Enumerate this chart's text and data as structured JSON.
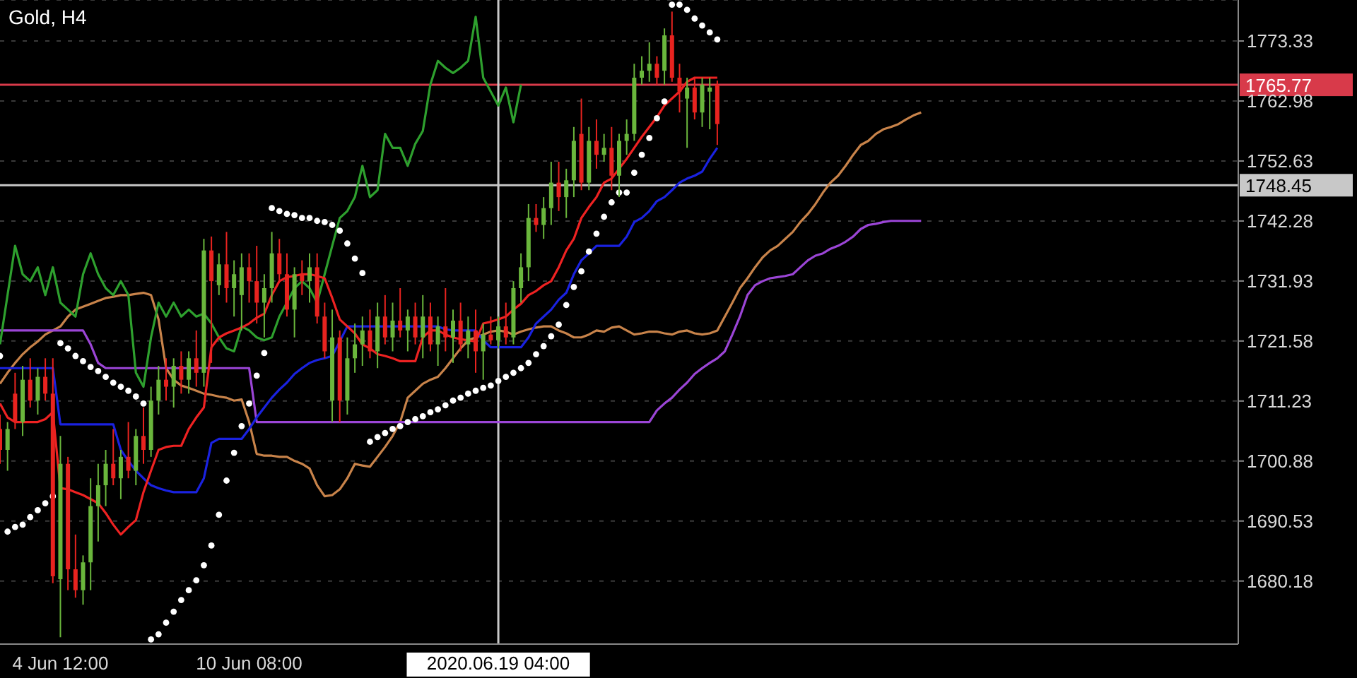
{
  "chart_data": {
    "type": "candlestick",
    "title": "Gold, H4",
    "categories": [
      null,
      null,
      null,
      null,
      null,
      null,
      null,
      null,
      "4 Jun 12:00",
      null,
      null,
      null,
      null,
      null,
      null,
      null,
      null,
      null,
      null,
      null,
      null,
      null,
      null,
      null,
      null,
      null,
      null,
      null,
      null,
      null,
      null,
      null,
      null,
      "10 Jun 08:00",
      null,
      null,
      null,
      null,
      null,
      null,
      null,
      null,
      null,
      null,
      null,
      null,
      null,
      null,
      null,
      null,
      null,
      null,
      null,
      null,
      null,
      null,
      null,
      null,
      null,
      null,
      null,
      null,
      null,
      null,
      null,
      null,
      "2020.06.19 04:00",
      null,
      null,
      null,
      null,
      null,
      null,
      null,
      null,
      null,
      null,
      null,
      null,
      null,
      null,
      null,
      null,
      null,
      null,
      null,
      null,
      null,
      null,
      null,
      null,
      null,
      null,
      null,
      null,
      null,
      null,
      null,
      null,
      null,
      null,
      null,
      null,
      null,
      null,
      null,
      null,
      null,
      null,
      null,
      null,
      null,
      null,
      null,
      null,
      null,
      null,
      null,
      null,
      null,
      null,
      null,
      null,
      null,
      null,
      null,
      null,
      null,
      null,
      null,
      null,
      null,
      null,
      null,
      null,
      null,
      null,
      null,
      null,
      null,
      null,
      null,
      null,
      null,
      null,
      null,
      null,
      null,
      null,
      null,
      null,
      null,
      null,
      null,
      null,
      null,
      null,
      null,
      null,
      null,
      null,
      null,
      null,
      null,
      null
    ],
    "ohlc": [
      [
        1706.4,
        1708.9,
        1700.4,
        1702.8
      ],
      [
        1702.8,
        1707.6,
        1699.2,
        1706.4
      ],
      [
        1712.5,
        1716.1,
        1706.4,
        1707.6
      ],
      [
        1707.6,
        1717.3,
        1705.2,
        1714.9
      ],
      [
        1714.9,
        1718.6,
        1710.1,
        1711.3
      ],
      [
        1711.3,
        1716.9,
        1708.9,
        1715.4
      ],
      [
        1715.4,
        1718.6,
        1711.3,
        1712.5
      ],
      [
        1712.5,
        1718.6,
        1679.8,
        1681.0
      ],
      [
        1680.5,
        1705.2,
        1670.5,
        1700.4
      ],
      [
        1700.4,
        1701.6,
        1678.6,
        1682.2
      ],
      [
        1682.2,
        1688.2,
        1677.3,
        1678.6
      ],
      [
        1678.6,
        1684.6,
        1676.1,
        1683.4
      ],
      [
        1683.4,
        1697.9,
        1678.6,
        1693.1
      ],
      [
        1693.1,
        1700.4,
        1687.0,
        1696.7
      ],
      [
        1696.7,
        1702.8,
        1693.1,
        1700.4
      ],
      [
        1700.4,
        1706.4,
        1696.7,
        1697.9
      ],
      [
        1697.9,
        1702.8,
        1694.3,
        1701.6
      ],
      [
        1701.6,
        1707.6,
        1697.9,
        1699.2
      ],
      [
        1699.2,
        1706.4,
        1696.7,
        1705.2
      ],
      [
        1705.2,
        1710.1,
        1700.4,
        1702.8
      ],
      [
        1702.8,
        1713.7,
        1701.6,
        1711.3
      ],
      [
        1711.3,
        1717.3,
        1708.9,
        1714.9
      ],
      [
        1714.9,
        1718.6,
        1711.3,
        1713.7
      ],
      [
        1713.7,
        1718.6,
        1710.1,
        1717.3
      ],
      [
        1717.3,
        1719.8,
        1712.5,
        1714.9
      ],
      [
        1714.9,
        1719.8,
        1712.5,
        1718.6
      ],
      [
        1718.6,
        1723.4,
        1713.7,
        1716.1
      ],
      [
        1716.1,
        1739.2,
        1713.7,
        1737.2
      ],
      [
        1737.2,
        1739.6,
        1717.8,
        1731.9
      ],
      [
        1731.2,
        1736.7,
        1729.5,
        1734.8
      ],
      [
        1734.8,
        1740.4,
        1728.2,
        1730.7
      ],
      [
        1730.7,
        1735.5,
        1725.8,
        1733.1
      ],
      [
        1729.5,
        1736.7,
        1723.4,
        1734.3
      ],
      [
        1734.3,
        1736.7,
        1728.2,
        1731.9
      ],
      [
        1731.9,
        1738.0,
        1724.6,
        1728.2
      ],
      [
        1728.2,
        1733.1,
        1722.2,
        1730.7
      ],
      [
        1730.7,
        1740.4,
        1728.2,
        1736.7
      ],
      [
        1736.7,
        1739.2,
        1731.9,
        1733.1
      ],
      [
        1733.1,
        1736.7,
        1725.8,
        1727.0
      ],
      [
        1727.0,
        1734.3,
        1722.2,
        1733.1
      ],
      [
        1733.1,
        1735.5,
        1729.5,
        1731.9
      ],
      [
        1731.9,
        1736.7,
        1728.2,
        1734.3
      ],
      [
        1734.3,
        1736.7,
        1724.6,
        1725.8
      ],
      [
        1725.8,
        1728.2,
        1718.6,
        1719.8
      ],
      [
        1711.3,
        1727.0,
        1707.6,
        1722.2
      ],
      [
        1722.2,
        1723.4,
        1707.6,
        1711.3
      ],
      [
        1711.3,
        1722.2,
        1708.9,
        1718.6
      ],
      [
        1718.6,
        1724.6,
        1716.1,
        1721.0
      ],
      [
        1721.0,
        1725.8,
        1717.3,
        1723.4
      ],
      [
        1723.4,
        1727.0,
        1718.6,
        1719.8
      ],
      [
        1719.8,
        1728.2,
        1716.9,
        1725.8
      ],
      [
        1725.8,
        1729.5,
        1721.0,
        1722.2
      ],
      [
        1722.2,
        1728.2,
        1719.8,
        1725.1
      ],
      [
        1725.1,
        1730.7,
        1722.2,
        1723.4
      ],
      [
        1723.4,
        1727.0,
        1719.8,
        1725.8
      ],
      [
        1725.8,
        1728.2,
        1721.0,
        1722.2
      ],
      [
        1722.2,
        1729.5,
        1718.6,
        1725.8
      ],
      [
        1725.8,
        1728.2,
        1719.8,
        1721.0
      ],
      [
        1721.0,
        1725.8,
        1717.3,
        1724.1
      ],
      [
        1724.1,
        1730.7,
        1719.8,
        1722.2
      ],
      [
        1722.2,
        1727.0,
        1717.8,
        1725.1
      ],
      [
        1725.1,
        1728.2,
        1719.8,
        1721.0
      ],
      [
        1721.0,
        1725.8,
        1718.6,
        1723.4
      ],
      [
        1723.4,
        1727.0,
        1716.1,
        1719.8
      ],
      [
        1719.8,
        1724.6,
        1714.9,
        1722.7
      ],
      [
        1722.7,
        1725.8,
        1721.0,
        1721.7
      ],
      [
        1721.7,
        1725.8,
        1720.3,
        1724.1
      ],
      [
        1724.1,
        1728.2,
        1721.0,
        1722.2
      ],
      [
        1722.2,
        1731.9,
        1721.0,
        1730.7
      ],
      [
        1730.7,
        1736.7,
        1728.2,
        1734.3
      ],
      [
        1734.3,
        1745.2,
        1731.9,
        1742.8
      ],
      [
        1742.8,
        1745.2,
        1740.4,
        1741.6
      ],
      [
        1741.6,
        1746.4,
        1739.2,
        1744.5
      ],
      [
        1744.5,
        1752.5,
        1741.6,
        1748.9
      ],
      [
        1748.9,
        1752.5,
        1744.0,
        1746.4
      ],
      [
        1746.4,
        1751.3,
        1742.8,
        1749.3
      ],
      [
        1749.3,
        1758.5,
        1746.4,
        1756.1
      ],
      [
        1757.3,
        1763.4,
        1747.6,
        1748.9
      ],
      [
        1748.9,
        1758.5,
        1747.6,
        1756.1
      ],
      [
        1756.1,
        1759.8,
        1751.3,
        1753.7
      ],
      [
        1753.7,
        1757.3,
        1752.5,
        1754.9
      ],
      [
        1754.9,
        1758.5,
        1747.6,
        1750.1
      ],
      [
        1750.1,
        1757.3,
        1746.4,
        1756.1
      ],
      [
        1756.1,
        1759.8,
        1753.7,
        1757.3
      ],
      [
        1757.3,
        1769.4,
        1756.1,
        1767.0
      ],
      [
        1767.0,
        1770.7,
        1765.8,
        1768.2
      ],
      [
        1768.2,
        1773.1,
        1766.3,
        1769.4
      ],
      [
        1769.4,
        1770.7,
        1765.8,
        1767.0
      ],
      [
        1768.2,
        1775.5,
        1765.8,
        1774.3
      ],
      [
        1774.3,
        1778.4,
        1766.3,
        1767.0
      ],
      [
        1767.0,
        1769.4,
        1761.0,
        1764.6
      ],
      [
        1763.4,
        1767.0,
        1754.9,
        1765.3
      ],
      [
        1765.3,
        1767.0,
        1759.8,
        1761.0
      ],
      [
        1761.0,
        1767.0,
        1758.5,
        1765.8
      ],
      [
        1764.6,
        1767.0,
        1758.1,
        1765.3
      ],
      [
        1765.8,
        1766.5,
        1755.4,
        1759.0
      ],
      null,
      null,
      null,
      null,
      null,
      null,
      null,
      null,
      null,
      null,
      null,
      null,
      null,
      null,
      null,
      null,
      null,
      null,
      null,
      null,
      null,
      null,
      null,
      null,
      null,
      null,
      null,
      null,
      null,
      null,
      null,
      null,
      null,
      null,
      null,
      null,
      null,
      null,
      null,
      null,
      null,
      null,
      null,
      null,
      null,
      null,
      null,
      null,
      null,
      null,
      null,
      null,
      null,
      null,
      null,
      null,
      null,
      null,
      null,
      null,
      null,
      null,
      null,
      null,
      null,
      null,
      null,
      null,
      null
    ],
    "colors": [
      "#e8231f",
      "#6ab63c",
      "#e8231f",
      "#6ab63c",
      "#e8231f",
      "#6ab63c",
      "#e8231f",
      "#e8231f",
      "#6ab63c",
      "#e8231f",
      "#e8231f",
      "#6ab63c",
      "#6ab63c",
      "#6ab63c",
      "#6ab63c",
      "#e8231f",
      "#6ab63c",
      "#e8231f",
      "#6ab63c",
      "#e8231f",
      "#6ab63c",
      "#6ab63c",
      "#e8231f",
      "#6ab63c",
      "#e8231f",
      "#6ab63c",
      "#e8231f",
      "#6ab63c",
      "#e8231f",
      "#6ab63c",
      "#e8231f",
      "#6ab63c",
      "#6ab63c",
      "#e8231f",
      "#e8231f",
      "#6ab63c",
      "#6ab63c",
      "#e8231f",
      "#e8231f",
      "#6ab63c",
      "#e8231f",
      "#6ab63c",
      "#e8231f",
      "#e8231f",
      "#6ab63c",
      "#e8231f",
      "#6ab63c",
      "#6ab63c",
      "#6ab63c",
      "#e8231f",
      "#6ab63c",
      "#e8231f",
      "#6ab63c",
      "#e8231f",
      "#6ab63c",
      "#e8231f",
      "#6ab63c",
      "#e8231f",
      "#6ab63c",
      "#e8231f",
      "#6ab63c",
      "#e8231f",
      "#6ab63c",
      "#e8231f",
      "#6ab63c",
      "#e8231f",
      "#6ab63c",
      "#e8231f",
      "#6ab63c",
      "#6ab63c",
      "#6ab63c",
      "#e8231f",
      "#6ab63c",
      "#6ab63c",
      "#e8231f",
      "#6ab63c",
      "#6ab63c",
      "#e8231f",
      "#6ab63c",
      "#e8231f",
      "#6ab63c",
      "#e8231f",
      "#6ab63c",
      "#6ab63c",
      "#6ab63c",
      "#6ab63c",
      "#6ab63c",
      "#e8231f",
      "#6ab63c",
      "#e8231f",
      "#e8231f",
      "#6ab63c",
      "#e8231f",
      "#6ab63c",
      "#6ab63c",
      "#e8231f",
      null,
      null,
      null,
      null,
      null,
      null,
      null,
      null,
      null,
      null,
      null,
      null,
      null,
      null,
      null,
      null,
      null,
      null,
      null,
      null,
      null,
      null,
      null,
      null,
      null,
      null,
      null,
      null,
      null,
      null,
      null,
      null,
      null,
      null,
      null,
      null,
      null,
      null,
      null,
      null,
      null,
      null,
      null,
      null,
      null,
      null,
      null,
      null,
      null,
      null,
      null,
      null,
      null,
      null,
      null,
      null,
      null,
      null,
      null,
      null,
      null,
      null,
      null,
      null,
      null,
      null,
      null,
      null,
      null
    ],
    "series": [
      {
        "type": "line",
        "color": "#c8834a",
        "values": [
          1714.2,
          1716.1,
          1717.8,
          1719.3,
          1720.5,
          1721.5,
          1722.7,
          1723.4,
          1724.1,
          1725.8,
          1727.0,
          1727.5,
          1728.0,
          1728.5,
          1729.0,
          1729.2,
          1729.5,
          1729.5,
          1729.7,
          1729.9,
          1729.5,
          1725.3,
          1716.9,
          1714.9,
          1713.9,
          1713.5,
          1713.0,
          1712.5,
          1712.3,
          1712.0,
          1711.8,
          1711.3,
          1711.5,
          1707.6,
          1702.1,
          1701.8,
          1701.8,
          1701.6,
          1701.6,
          1700.9,
          1700.4,
          1699.6,
          1696.7,
          1694.8,
          1695.0,
          1696.0,
          1697.9,
          1700.4,
          1700.1,
          1699.9,
          1701.6,
          1703.3,
          1705.2,
          1707.6,
          1711.8,
          1713.0,
          1714.2,
          1714.9,
          1715.4,
          1716.9,
          1718.6,
          1720.3,
          1721.7,
          1722.2,
          1722.7,
          1723.2,
          1723.4,
          1723.2,
          1722.7,
          1723.2,
          1723.6,
          1723.9,
          1724.1,
          1724.1,
          1723.4,
          1722.9,
          1722.2,
          1722.2,
          1722.7,
          1723.4,
          1723.2,
          1723.9,
          1724.1,
          1723.4,
          1722.7,
          1722.9,
          1723.2,
          1723.2,
          1722.9,
          1722.7,
          1723.2,
          1723.4,
          1722.9,
          1722.7,
          1722.9,
          1723.4,
          1725.8,
          1728.2,
          1730.7,
          1732.4,
          1734.3,
          1736.0,
          1737.2,
          1738.0,
          1739.2,
          1740.4,
          1742.1,
          1743.5,
          1745.2,
          1747.2,
          1748.9,
          1750.1,
          1751.8,
          1753.7,
          1755.4,
          1756.1,
          1757.3,
          1758.1,
          1758.5,
          1759.0,
          1759.8,
          1760.5,
          1761.0,
          null,
          null,
          null,
          null,
          null,
          null,
          null,
          null,
          null,
          null,
          null,
          null,
          null,
          null,
          null,
          null,
          null,
          null,
          null,
          null,
          null,
          null,
          null,
          null,
          null,
          null,
          null,
          null,
          null,
          null,
          null,
          null,
          null,
          null,
          null,
          null,
          null,
          null,
          null,
          null,
          null,
          null
        ]
      },
      {
        "type": "line",
        "color": "#9b45d6",
        "values": [
          1723.4,
          1723.4,
          1723.4,
          1723.4,
          1723.4,
          1723.4,
          1723.4,
          1723.4,
          1723.4,
          1723.4,
          1723.4,
          1723.4,
          1721.0,
          1717.8,
          1716.9,
          1716.9,
          1716.9,
          1716.9,
          1716.9,
          1716.9,
          1716.9,
          1716.9,
          1716.9,
          1716.9,
          1716.9,
          1716.9,
          1716.9,
          1716.9,
          1716.9,
          1716.9,
          1716.9,
          1716.9,
          1716.9,
          1716.9,
          1707.6,
          1707.6,
          1707.6,
          1707.6,
          1707.6,
          1707.6,
          1707.6,
          1707.6,
          1707.6,
          1707.6,
          1707.6,
          1707.6,
          1707.6,
          1707.6,
          1707.6,
          1707.6,
          1707.6,
          1707.6,
          1707.6,
          1707.6,
          1707.6,
          1707.6,
          1707.6,
          1707.6,
          1707.6,
          1707.6,
          1707.6,
          1707.6,
          1707.6,
          1707.6,
          1707.6,
          1707.6,
          1707.6,
          1707.6,
          1707.6,
          1707.6,
          1707.6,
          1707.6,
          1707.6,
          1707.6,
          1707.6,
          1707.6,
          1707.6,
          1707.6,
          1707.6,
          1707.6,
          1707.6,
          1707.6,
          1707.6,
          1707.6,
          1707.6,
          1707.6,
          1707.6,
          1709.6,
          1710.8,
          1711.8,
          1713.2,
          1714.4,
          1715.9,
          1716.9,
          1717.8,
          1718.6,
          1719.8,
          1722.7,
          1725.8,
          1729.5,
          1731.2,
          1731.9,
          1732.4,
          1732.6,
          1732.8,
          1733.1,
          1734.3,
          1735.5,
          1736.3,
          1736.7,
          1737.5,
          1738.0,
          1738.7,
          1739.6,
          1740.9,
          1741.6,
          1741.8,
          1742.1,
          1742.3,
          1742.3,
          1742.3,
          1742.3,
          1742.3,
          null,
          null,
          null,
          null,
          null,
          null,
          null,
          null,
          null,
          null,
          null,
          null,
          null,
          null,
          null,
          null,
          null,
          null,
          null,
          null,
          null,
          null,
          null,
          null,
          null,
          null,
          null,
          null,
          null,
          null,
          null,
          null,
          null,
          null,
          null,
          null,
          null,
          null,
          null,
          null,
          null,
          null
        ]
      },
      {
        "type": "line",
        "color": "#2ea02e",
        "values": [
          1721.0,
          1729.5,
          1738.0,
          1733.1,
          1731.9,
          1734.3,
          1729.5,
          1734.3,
          1728.2,
          1727.0,
          1725.8,
          1733.1,
          1736.7,
          1733.1,
          1730.7,
          1729.5,
          1731.9,
          1729.5,
          1716.1,
          1713.7,
          1722.2,
          1728.2,
          1725.8,
          1728.2,
          1725.8,
          1727.0,
          1725.8,
          1726.3,
          1724.6,
          1722.2,
          1720.3,
          1719.8,
          1724.1,
          1723.4,
          1722.2,
          1721.7,
          1722.2,
          1725.8,
          1728.2,
          1730.7,
          1731.9,
          1730.7,
          1728.2,
          1733.1,
          1738.0,
          1742.8,
          1744.0,
          1746.4,
          1751.8,
          1746.4,
          1747.6,
          1757.3,
          1754.9,
          1754.9,
          1751.8,
          1755.6,
          1757.8,
          1765.8,
          1769.9,
          1768.7,
          1767.8,
          1768.7,
          1769.9,
          1777.5,
          1767.0,
          1764.6,
          1762.2,
          1765.3,
          1759.3,
          1765.8,
          null,
          null,
          null,
          null,
          null,
          null,
          null,
          null,
          null,
          null,
          null,
          null,
          null,
          null,
          null,
          null,
          null,
          null,
          null,
          null,
          null,
          null,
          null,
          null,
          null,
          null,
          null,
          null,
          null,
          null,
          null,
          null,
          null,
          null,
          null,
          null,
          null,
          null,
          null,
          null,
          null,
          null,
          null,
          null,
          null,
          null,
          null,
          null,
          null,
          null,
          null,
          null,
          null,
          null,
          null,
          null,
          null,
          null,
          null,
          null,
          null,
          null,
          null,
          null,
          null,
          null,
          null,
          null,
          null,
          null,
          null,
          null,
          null,
          null,
          null,
          null,
          null,
          null,
          null,
          null,
          null,
          null,
          null,
          null,
          null,
          null,
          null,
          null,
          null,
          null,
          null,
          null,
          null,
          null,
          null
        ]
      },
      {
        "type": "line",
        "color": "#1a22e0",
        "values": [
          1716.9,
          1716.9,
          1716.9,
          1716.9,
          1716.9,
          1716.9,
          1716.9,
          1716.9,
          1707.2,
          1707.2,
          1707.2,
          1707.2,
          1707.2,
          1707.2,
          1707.2,
          1707.2,
          1702.8,
          1700.9,
          1699.2,
          1697.9,
          1696.7,
          1696.2,
          1695.8,
          1695.5,
          1695.5,
          1695.5,
          1695.5,
          1697.9,
          1704.0,
          1704.7,
          1704.7,
          1704.7,
          1704.7,
          1706.4,
          1708.4,
          1710.1,
          1711.8,
          1713.2,
          1714.4,
          1715.9,
          1716.9,
          1717.8,
          1718.3,
          1718.6,
          1719.0,
          1721.5,
          1724.1,
          1724.1,
          1724.1,
          1724.1,
          1724.1,
          1724.1,
          1724.1,
          1724.1,
          1724.1,
          1724.1,
          1724.1,
          1724.1,
          1724.1,
          1723.6,
          1723.4,
          1723.4,
          1723.4,
          1723.4,
          1721.7,
          1720.5,
          1720.5,
          1720.5,
          1720.5,
          1720.5,
          1722.2,
          1724.6,
          1725.8,
          1727.0,
          1728.7,
          1729.9,
          1733.1,
          1735.5,
          1736.7,
          1738.0,
          1738.0,
          1738.0,
          1738.0,
          1739.6,
          1742.1,
          1742.8,
          1744.0,
          1745.7,
          1746.4,
          1747.6,
          1748.9,
          1749.6,
          1750.1,
          1750.8,
          1753.0,
          1754.9,
          null,
          null,
          null,
          null,
          null,
          null,
          null,
          null,
          null,
          null,
          null,
          null,
          null,
          null,
          null,
          null,
          null,
          null,
          null,
          null,
          null,
          null,
          null,
          null,
          null,
          null,
          null,
          null,
          null,
          null,
          null,
          null,
          null,
          null,
          null,
          null,
          null,
          null,
          null,
          null,
          null,
          null,
          null,
          null,
          null,
          null,
          null,
          null,
          null,
          null,
          null,
          null,
          null,
          null,
          null,
          null,
          null,
          null,
          null,
          null,
          null,
          null,
          null,
          null,
          null,
          null,
          null,
          null,
          null
        ]
      },
      {
        "type": "line",
        "color": "#ee2222",
        "values": [
          1710.8,
          1708.4,
          1707.6,
          1707.6,
          1707.6,
          1707.6,
          1708.1,
          1709.3,
          1696.2,
          1696.0,
          1695.5,
          1695.0,
          1694.3,
          1693.6,
          1691.9,
          1689.9,
          1688.2,
          1689.5,
          1690.7,
          1695.5,
          1699.2,
          1702.8,
          1703.3,
          1703.5,
          1703.5,
          1706.4,
          1708.4,
          1710.1,
          1720.5,
          1722.2,
          1722.9,
          1723.4,
          1723.9,
          1724.6,
          1725.6,
          1726.3,
          1729.5,
          1731.9,
          1732.6,
          1732.8,
          1733.1,
          1733.1,
          1732.8,
          1732.4,
          1729.0,
          1725.3,
          1724.1,
          1722.9,
          1721.0,
          1720.3,
          1719.3,
          1719.0,
          1718.6,
          1718.1,
          1718.1,
          1718.1,
          1722.2,
          1723.4,
          1723.4,
          1722.7,
          1722.2,
          1721.9,
          1721.7,
          1721.5,
          1724.6,
          1724.9,
          1725.3,
          1725.8,
          1727.0,
          1728.0,
          1729.5,
          1730.2,
          1731.2,
          1731.9,
          1734.3,
          1737.2,
          1739.2,
          1742.8,
          1744.7,
          1746.4,
          1748.9,
          1749.6,
          1751.3,
          1753.0,
          1754.9,
          1756.8,
          1758.5,
          1760.2,
          1762.2,
          1763.4,
          1764.6,
          1766.3,
          1767.0,
          1767.0,
          1767.0,
          1767.0,
          null,
          null,
          null,
          null,
          null,
          null,
          null,
          null,
          null,
          null,
          null,
          null,
          null,
          null,
          null,
          null,
          null,
          null,
          null,
          null,
          null,
          null,
          null,
          null,
          null,
          null,
          null,
          null,
          null,
          null,
          null,
          null,
          null,
          null,
          null,
          null,
          null,
          null,
          null,
          null,
          null,
          null,
          null,
          null,
          null,
          null,
          null,
          null,
          null,
          null,
          null,
          null,
          null,
          null,
          null,
          null,
          null,
          null,
          null,
          null,
          null,
          null,
          null,
          null,
          null,
          null,
          null,
          null,
          null
        ]
      },
      {
        "type": "scatter",
        "color": "#ffffff",
        "marker": "circle",
        "values": [
          1719.0,
          1688.7,
          1689.5,
          1689.9,
          1691.2,
          1692.4,
          1693.6,
          1694.8,
          1721.2,
          1720.3,
          1719.0,
          1718.1,
          1717.1,
          1716.4,
          1715.4,
          1714.4,
          1713.7,
          1713.0,
          1712.0,
          1710.8,
          1670.1,
          1671.0,
          1673.0,
          1674.9,
          1676.9,
          1678.6,
          1680.3,
          1682.9,
          1686.3,
          1691.6,
          1697.5,
          1702.3,
          1706.9,
          1710.8,
          1715.6,
          1719.5,
          1744.5,
          1744.0,
          1743.5,
          1743.3,
          1742.8,
          1742.8,
          1742.3,
          1742.1,
          1741.6,
          1740.6,
          1738.4,
          1735.8,
          1733.3,
          1704.2,
          1705.0,
          1705.7,
          1706.4,
          1706.9,
          1707.6,
          1708.1,
          1708.6,
          1709.3,
          1709.8,
          1710.5,
          1711.3,
          1711.8,
          1712.5,
          1713.0,
          1713.5,
          1713.9,
          1714.7,
          1715.4,
          1716.1,
          1716.9,
          1717.8,
          1719.3,
          1720.7,
          1722.4,
          1724.4,
          1727.8,
          1730.9,
          1733.6,
          1737.0,
          1740.1,
          1743.0,
          1745.5,
          1747.2,
          1747.2,
          1750.6,
          1753.7,
          1756.6,
          1760.0,
          1762.9,
          1779.6,
          1779.6,
          1778.7,
          1777.2,
          1776.0,
          1774.8,
          1773.6,
          null,
          null,
          null,
          null,
          null,
          null,
          null,
          null,
          null,
          null,
          null,
          null,
          null,
          null,
          null,
          null,
          null,
          null,
          null,
          null,
          null,
          null,
          null,
          null,
          null,
          null,
          null,
          null,
          null,
          null,
          null,
          null,
          null,
          null,
          null,
          null,
          null,
          null,
          null,
          null,
          null,
          null,
          null,
          null,
          null,
          null,
          null,
          null,
          null,
          null,
          null,
          null,
          null,
          null,
          null,
          null,
          null,
          null,
          null,
          null,
          null,
          null,
          null,
          null,
          null,
          null,
          null,
          null,
          null
        ]
      }
    ],
    "ylim": [
      1669.3,
      1780.4
    ],
    "yticks": [
      1680.18,
      1690.53,
      1700.88,
      1711.23,
      1721.58,
      1731.93,
      1742.28,
      1752.63,
      1762.98,
      1773.33
    ],
    "grid": "y",
    "ref_lines": [
      {
        "axis": "y",
        "value": 1765.77,
        "label": "1765.77",
        "color": "#d83a4a"
      },
      {
        "axis": "y",
        "value": 1748.45,
        "label": "1748.45",
        "color": "#c8c8c8"
      },
      {
        "axis": "x",
        "value": "2020.06.19 04:00",
        "color": "#c8c8c8"
      }
    ]
  }
}
